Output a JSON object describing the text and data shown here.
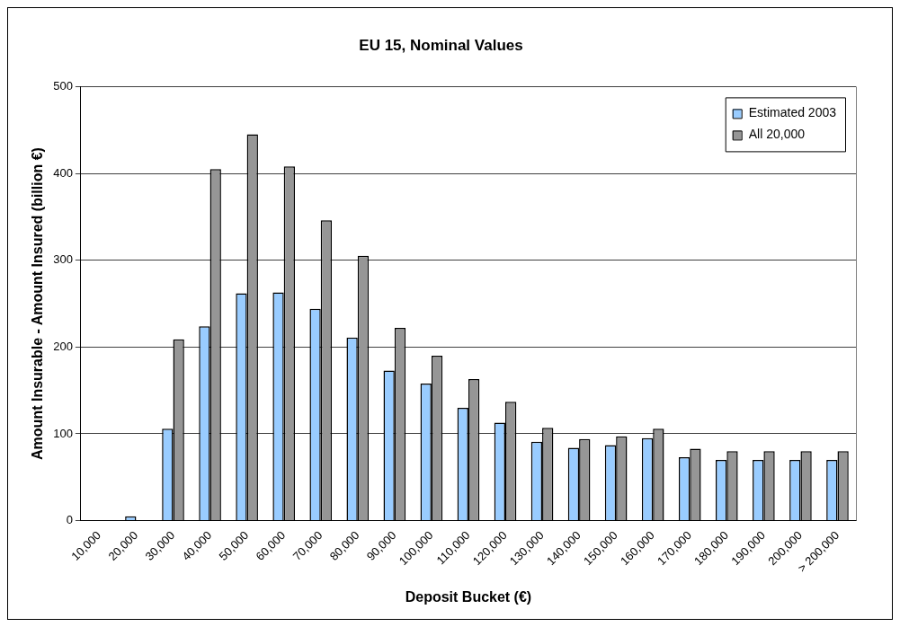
{
  "chart_data": {
    "type": "bar",
    "title": "EU 15, Nominal Values",
    "xlabel": "Deposit Bucket (€)",
    "ylabel": "Amount Insurable - Amount Insured (billion €)",
    "categories": [
      "10,000",
      "20,000",
      "30,000",
      "40,000",
      "50,000",
      "60,000",
      "70,000",
      "80,000",
      "90,000",
      "100,000",
      "110,000",
      "120,000",
      "130,000",
      "140,000",
      "150,000",
      "160,000",
      "170,000",
      "180,000",
      "190,000",
      "200,000",
      "> 200,000"
    ],
    "series": [
      {
        "name": "Estimated 2003",
        "color": "#99ccff",
        "values": [
          0,
          5,
          106,
          224,
          262,
          263,
          244,
          211,
          173,
          158,
          130,
          113,
          91,
          84,
          87,
          95,
          73,
          70,
          70,
          70,
          70
        ]
      },
      {
        "name": "All 20,000",
        "color": "#969696",
        "values": [
          0,
          0,
          209,
          405,
          445,
          408,
          346,
          305,
          222,
          190,
          163,
          137,
          107,
          94,
          97,
          106,
          83,
          80,
          80,
          80,
          80
        ]
      }
    ],
    "ylim": [
      0,
      500
    ],
    "yticks": [
      0,
      100,
      200,
      300,
      400,
      500
    ],
    "grid": "y",
    "legend": "top right"
  }
}
